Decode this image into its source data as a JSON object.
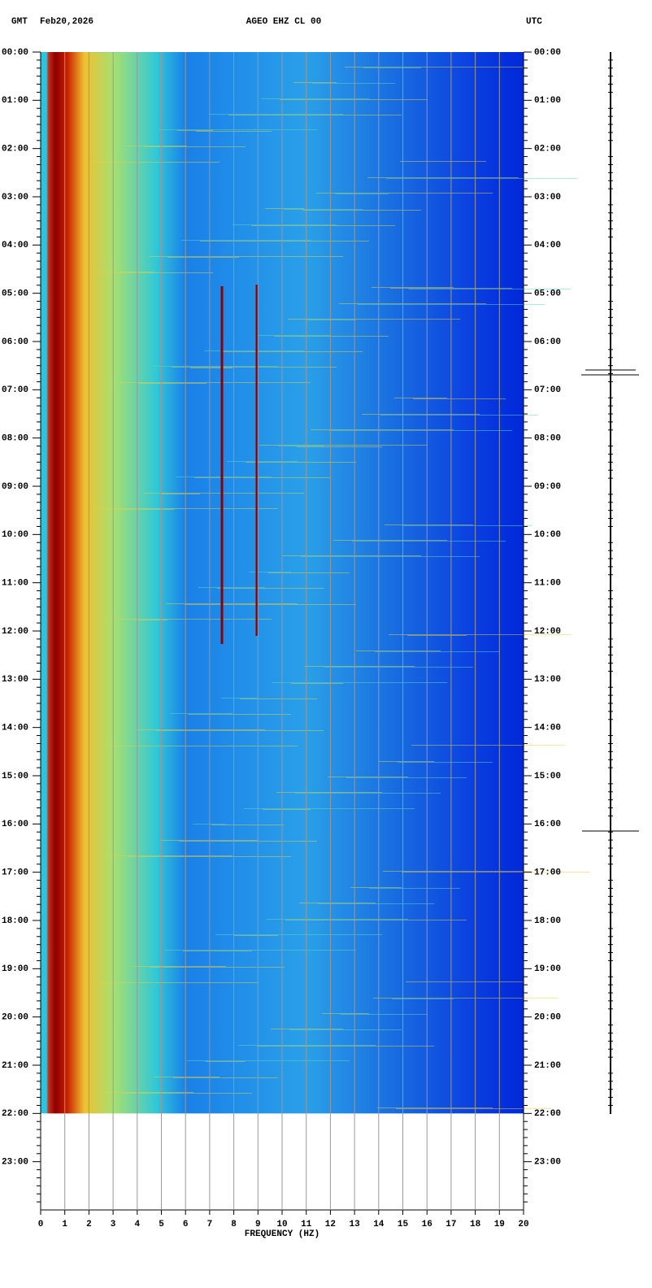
{
  "chart_data": {
    "type": "spectrogram",
    "header_left_zone": "GMT",
    "header_date": "Feb20,2026",
    "title": "AGEO EHZ CL 00",
    "header_right_zone": "UTC",
    "x_label": "FREQUENCY (HZ)",
    "xlim": [
      0,
      20
    ],
    "xticks": [
      0,
      1,
      2,
      3,
      4,
      5,
      6,
      7,
      8,
      9,
      10,
      11,
      12,
      13,
      14,
      15,
      16,
      17,
      18,
      19,
      20
    ],
    "ylim": [
      0,
      24
    ],
    "yticks": [
      {
        "value": 0,
        "label": "00:00"
      },
      {
        "value": 1,
        "label": "01:00"
      },
      {
        "value": 2,
        "label": "02:00"
      },
      {
        "value": 3,
        "label": "03:00"
      },
      {
        "value": 4,
        "label": "04:00"
      },
      {
        "value": 5,
        "label": "05:00"
      },
      {
        "value": 6,
        "label": "06:00"
      },
      {
        "value": 7,
        "label": "07:00"
      },
      {
        "value": 8,
        "label": "08:00"
      },
      {
        "value": 9,
        "label": "09:00"
      },
      {
        "value": 10,
        "label": "10:00"
      },
      {
        "value": 11,
        "label": "11:00"
      },
      {
        "value": 12,
        "label": "12:00"
      },
      {
        "value": 13,
        "label": "13:00"
      },
      {
        "value": 14,
        "label": "14:00"
      },
      {
        "value": 15,
        "label": "15:00"
      },
      {
        "value": 16,
        "label": "16:00"
      },
      {
        "value": 17,
        "label": "17:00"
      },
      {
        "value": 18,
        "label": "18:00"
      },
      {
        "value": 19,
        "label": "19:00"
      },
      {
        "value": 20,
        "label": "20:00"
      },
      {
        "value": 21,
        "label": "21:00"
      },
      {
        "value": 22,
        "label": "22:00"
      },
      {
        "value": 23,
        "label": "23:00"
      }
    ],
    "data_end": 22,
    "grid": true,
    "grid_color": "#999999"
  }
}
